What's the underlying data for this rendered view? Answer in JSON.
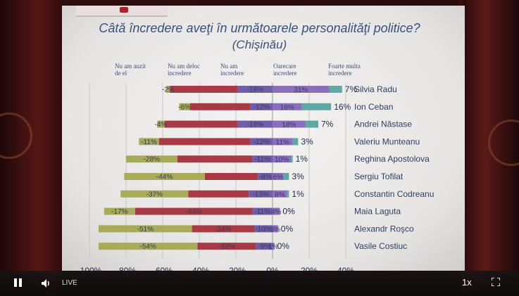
{
  "player": {
    "live_label": "LIVE",
    "speed_label": "1x",
    "icons": [
      "pause-icon",
      "volume-icon",
      "fullscreen-icon"
    ]
  },
  "slide": {
    "title_line1": "Câtă încredere aveţi în următoarele personalităţi politice?",
    "title_line2": "(Chişinău)",
    "legend": [
      "Nu am auzit\nde el",
      "Nu am deloc\nincredere",
      "Nu am\nincredere",
      "Oarecare\nincredere",
      "Foarte multa\nincredere"
    ]
  },
  "chart_data": {
    "type": "bar",
    "orientation": "horizontal-diverging",
    "xlim": [
      -100,
      40
    ],
    "xticks": [
      "-100%",
      "-80%",
      "-60%",
      "-40%",
      "-20%",
      "0%",
      "20%",
      "40%"
    ],
    "categories": [
      "Silvia Radu",
      "Ion Ceban",
      "Andrei Năstase",
      "Valeriu Munteanu",
      "Reghina Apostolova",
      "Sergiu Tofilat",
      "Constantin Codreanu",
      "Maia Laguta",
      "Alexandr Roşco",
      "Vasile Costiuc"
    ],
    "series": [
      {
        "name": "Nu am auzit de el",
        "color": "#a8ab5a",
        "values": [
          -2,
          -6,
          -4,
          -11,
          -28,
          -44,
          -37,
          -17,
          -51,
          -54
        ],
        "labels": [
          "-2%",
          "-6%",
          "-4%",
          "-11%",
          "-28%",
          "-44%",
          "-37%",
          "-17%",
          "-51%",
          "-54%"
        ]
      },
      {
        "name": "Nu am deloc incredere",
        "color": "#a83a45",
        "values": [
          -37,
          -33,
          -40,
          -50,
          -41,
          -29,
          -33,
          -64,
          -34,
          -32
        ],
        "labels": [
          "",
          "",
          "",
          "",
          "",
          "",
          "",
          "-64%",
          "-34%",
          "-32%"
        ]
      },
      {
        "name": "Nu am incredere",
        "color": "#6e5fa8",
        "values": [
          -19,
          -12,
          -19,
          -12,
          -11,
          -8,
          -13,
          -11,
          -10,
          -9
        ],
        "labels": [
          "-19%",
          "-12%",
          "-19%",
          "-12%",
          "-11%",
          "-8%",
          "-13%",
          "-11%",
          "-10%",
          "-9%"
        ]
      },
      {
        "name": "Oarecare incredere",
        "color": "#8c6ec0",
        "values": [
          31,
          16,
          18,
          11,
          10,
          6,
          8,
          4,
          3,
          1
        ],
        "labels": [
          "31%",
          "16%",
          "18%",
          "11%",
          "10%",
          "6%",
          "8%",
          "4%",
          "3%",
          "1%"
        ]
      },
      {
        "name": "Foarte multa incredere",
        "color": "#5fa8a4",
        "values": [
          7,
          16,
          7,
          3,
          1,
          3,
          1,
          0,
          0,
          0
        ],
        "labels": [
          "7%",
          "16%",
          "7%",
          "3%",
          "1%",
          "3%",
          "1%",
          "0%",
          "0%",
          "0%"
        ]
      }
    ]
  }
}
